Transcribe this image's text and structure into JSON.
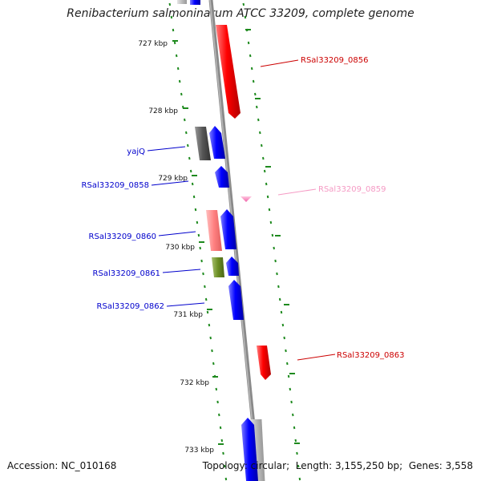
{
  "title": "Renibacterium salmoninarum ATCC 33209, complete genome",
  "footer": {
    "accession_label": "Accession:",
    "accession": "NC_010168",
    "topology_label": "Topology:",
    "topology": "circular",
    "length_label": "Length:",
    "length": "3,155,250 bp",
    "genes_label": "Genes:",
    "genes": "3,558"
  },
  "ticks": [
    {
      "label": "727 kbp"
    },
    {
      "label": "728 kbp"
    },
    {
      "label": "729 kbp"
    },
    {
      "label": "730 kbp"
    },
    {
      "label": "731 kbp"
    },
    {
      "label": "732 kbp"
    },
    {
      "label": "733 kbp"
    }
  ],
  "gene_labels": [
    {
      "name": "RSal33209_0856",
      "color": "#cc0000"
    },
    {
      "name": "yajQ",
      "color": "#0000cc"
    },
    {
      "name": "RSal33209_0858",
      "color": "#0000cc"
    },
    {
      "name": "RSal33209_0859",
      "color": "#f59ac4"
    },
    {
      "name": "RSal33209_0860",
      "color": "#0000cc"
    },
    {
      "name": "RSal33209_0861",
      "color": "#0000cc"
    },
    {
      "name": "RSal33209_0862",
      "color": "#0000cc"
    },
    {
      "name": "RSal33209_0863",
      "color": "#cc0000"
    }
  ],
  "colors": {
    "backbone": "#8a8a8a",
    "dots": "#1e8a1e",
    "red": "#ff0000",
    "blue": "#0000ff",
    "pink": "#ff6b6b",
    "gray": "#666666",
    "olive": "#6b8e23",
    "light_gray": "#bbbbbb"
  }
}
